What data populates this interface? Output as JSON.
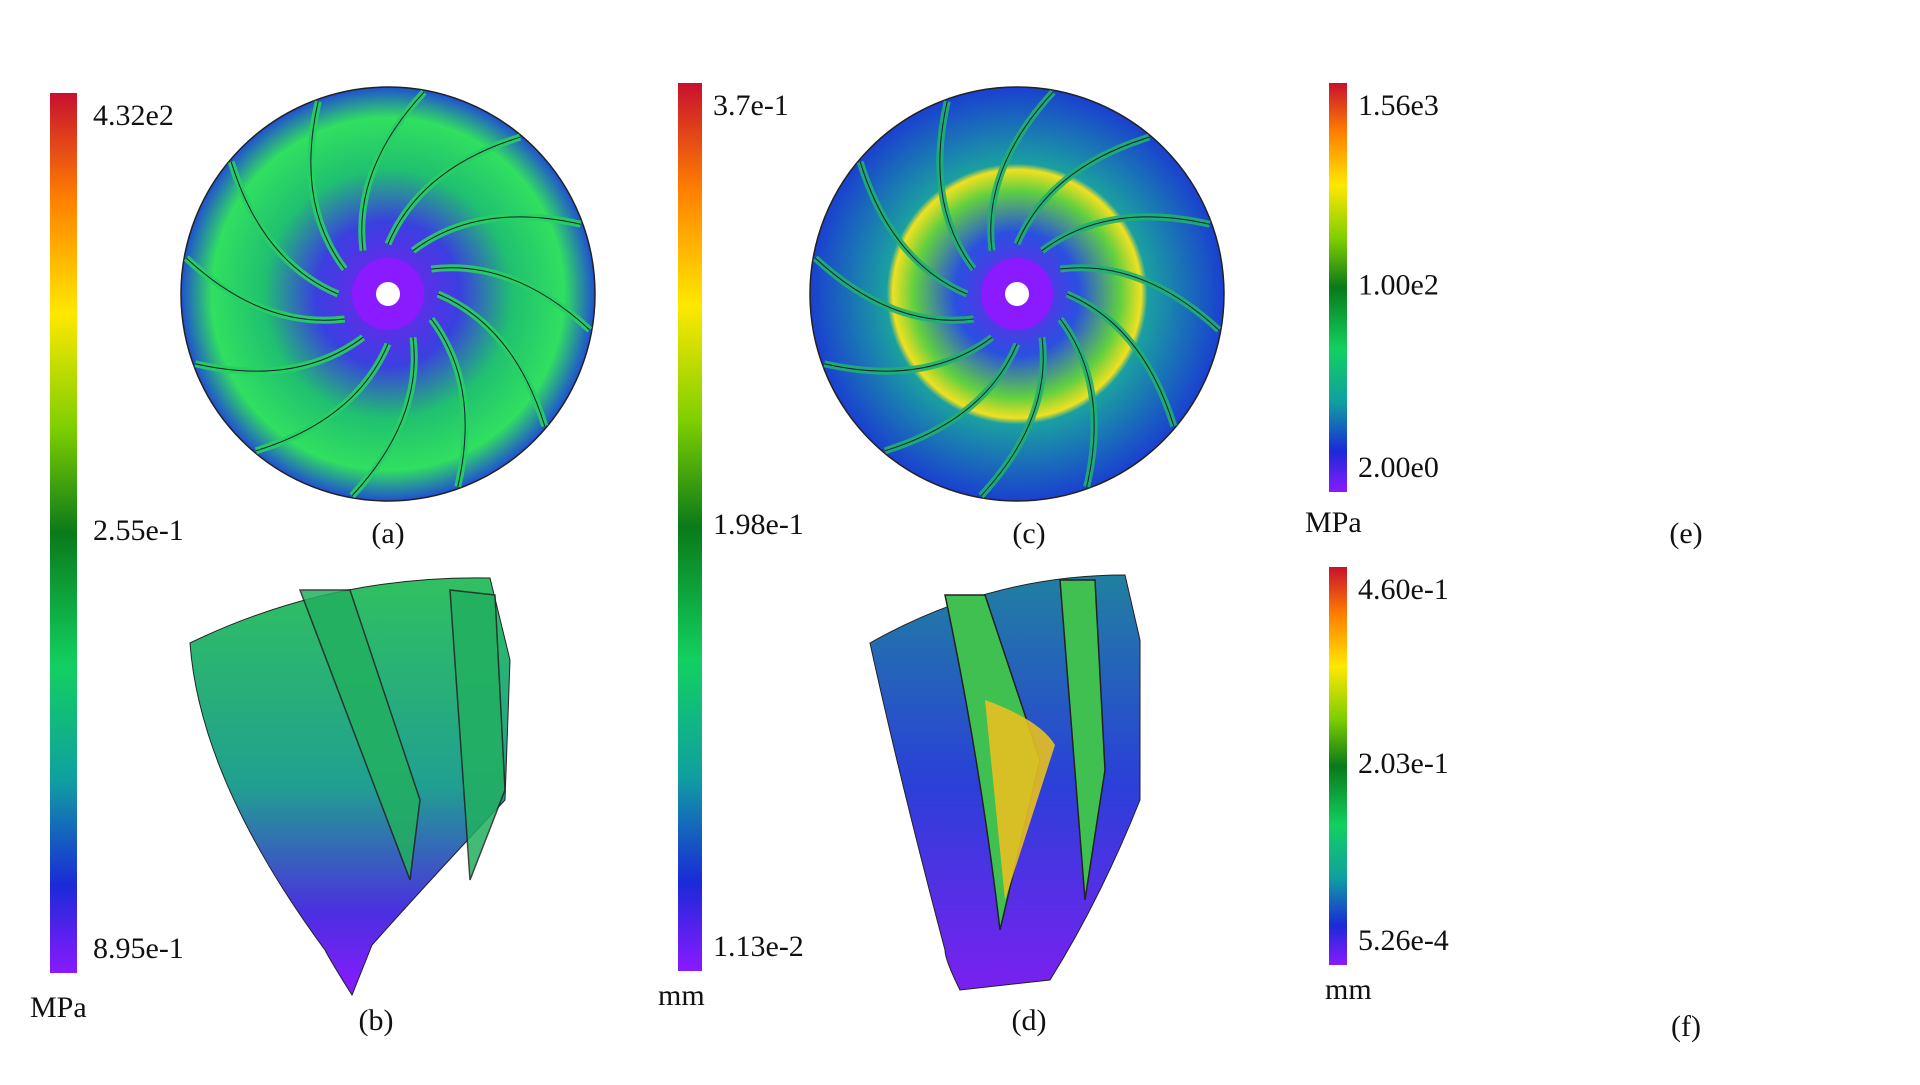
{
  "colorbars": [
    {
      "labels": [
        "4.32e2",
        "2.55e-1",
        "8.95e-1"
      ],
      "unit": "MPa"
    },
    {
      "labels": [
        "3.7e-1",
        "1.98e-1",
        "1.13e-2"
      ],
      "unit": "mm"
    },
    {
      "labels": [
        "1.56e3",
        "1.00e2",
        "2.00e0"
      ],
      "unit": "MPa"
    },
    {
      "labels": [
        "4.60e-1",
        "2.03e-1",
        "5.26e-4"
      ],
      "unit": "mm"
    }
  ],
  "panels": [
    "(a)",
    "(b)",
    "(c)",
    "(d)",
    "(e)",
    "(f)"
  ]
}
